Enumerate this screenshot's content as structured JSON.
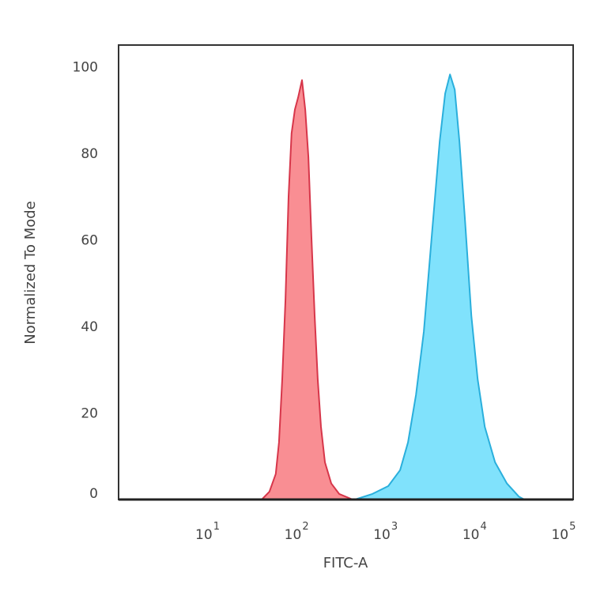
{
  "chart_data": {
    "type": "area",
    "title": "",
    "xlabel": "FITC-A",
    "ylabel": "Normalized To Mode",
    "xscale": "log",
    "xlim": [
      1.8,
      230000
    ],
    "ylim": [
      0,
      105
    ],
    "grid": false,
    "x_ticks": [
      {
        "value": 10,
        "base": "10",
        "exp": "1"
      },
      {
        "value": 100,
        "base": "10",
        "exp": "2"
      },
      {
        "value": 1000,
        "base": "10",
        "exp": "3"
      },
      {
        "value": 10000,
        "base": "10",
        "exp": "4"
      },
      {
        "value": 100000,
        "base": "10",
        "exp": "5"
      }
    ],
    "y_ticks": [
      "0",
      "20",
      "40",
      "60",
      "80",
      "100"
    ],
    "series": [
      {
        "fill": "#f98e93",
        "stroke": "#d7364a",
        "x": [
          73,
          89,
          105,
          114,
          124,
          135,
          146,
          158,
          172,
          187,
          207,
          225,
          244,
          264,
          287,
          311,
          338,
          374,
          441,
          541,
          766
        ],
        "y": [
          0,
          1.8,
          5.9,
          13.2,
          27.8,
          46.2,
          70,
          84.6,
          90.1,
          92.9,
          96.9,
          90.1,
          79.1,
          60.8,
          42.5,
          27.8,
          16.8,
          8.6,
          3.7,
          1.3,
          0
        ]
      },
      {
        "fill": "#80e2fc",
        "stroke": "#2aafdc",
        "x": [
          815,
          1279,
          1925,
          2617,
          3212,
          3945,
          4835,
          5934,
          7283,
          8395,
          9506,
          10740,
          12140,
          14030,
          16520,
          19450,
          23390,
          30490,
          41490,
          56380,
          65030
        ],
        "y": [
          0,
          1.3,
          3.1,
          6.8,
          13.2,
          24.2,
          38.8,
          60.8,
          82.8,
          93.8,
          98.2,
          94.7,
          82.8,
          64.5,
          42.5,
          27.8,
          16.8,
          8.6,
          3.7,
          0.7,
          0
        ]
      }
    ]
  }
}
